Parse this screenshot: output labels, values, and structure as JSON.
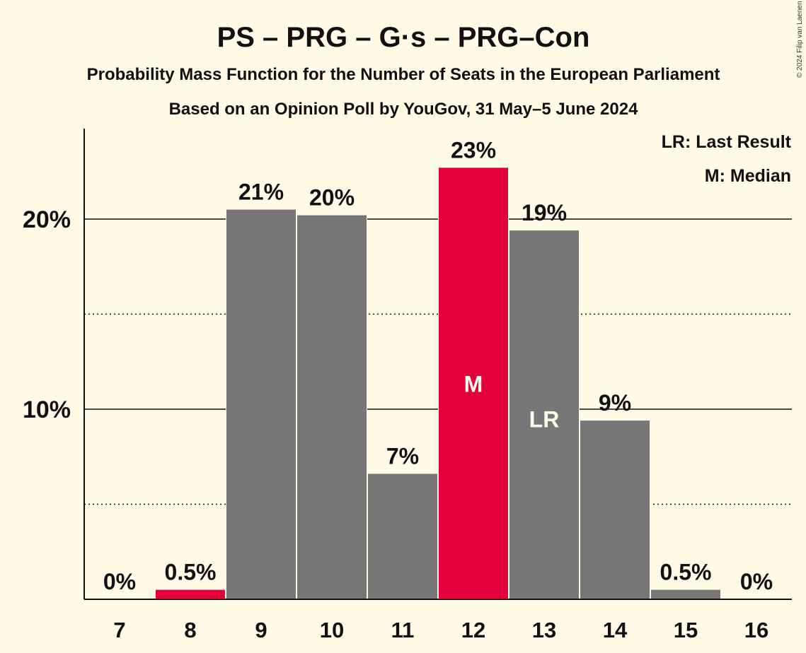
{
  "title": "PS – PRG – G·s – PRG–Con",
  "subtitle": "Probability Mass Function for the Number of Seats in the European Parliament",
  "subtitle2": "Based on an Opinion Poll by YouGov, 31 May–5 June 2024",
  "legend": {
    "last_result": "LR: Last Result",
    "median": "M: Median"
  },
  "copyright": "© 2024 Filip van Laenen",
  "colors": {
    "background": "#fefbe6",
    "bar": "#777777",
    "highlight": "#e3003c"
  },
  "chart_data": {
    "type": "bar",
    "categories": [
      "7",
      "8",
      "9",
      "10",
      "11",
      "12",
      "13",
      "14",
      "15",
      "16"
    ],
    "values": [
      0,
      0.5,
      20.5,
      20.2,
      6.6,
      22.7,
      19.4,
      9.4,
      0.5,
      0
    ],
    "data_labels": [
      "0%",
      "0.5%",
      "21%",
      "20%",
      "7%",
      "23%",
      "19%",
      "9%",
      "0.5%",
      "0%"
    ],
    "highlight": [
      "8",
      "12"
    ],
    "median": "12",
    "median_label": "M",
    "last_result": "13",
    "last_result_label": "LR",
    "y_ticks": [
      10,
      20
    ],
    "y_tick_labels": [
      "10%",
      "20%"
    ],
    "y_minor_ticks": [
      5,
      15
    ],
    "ylim": [
      0,
      24.7
    ],
    "grid": true
  }
}
